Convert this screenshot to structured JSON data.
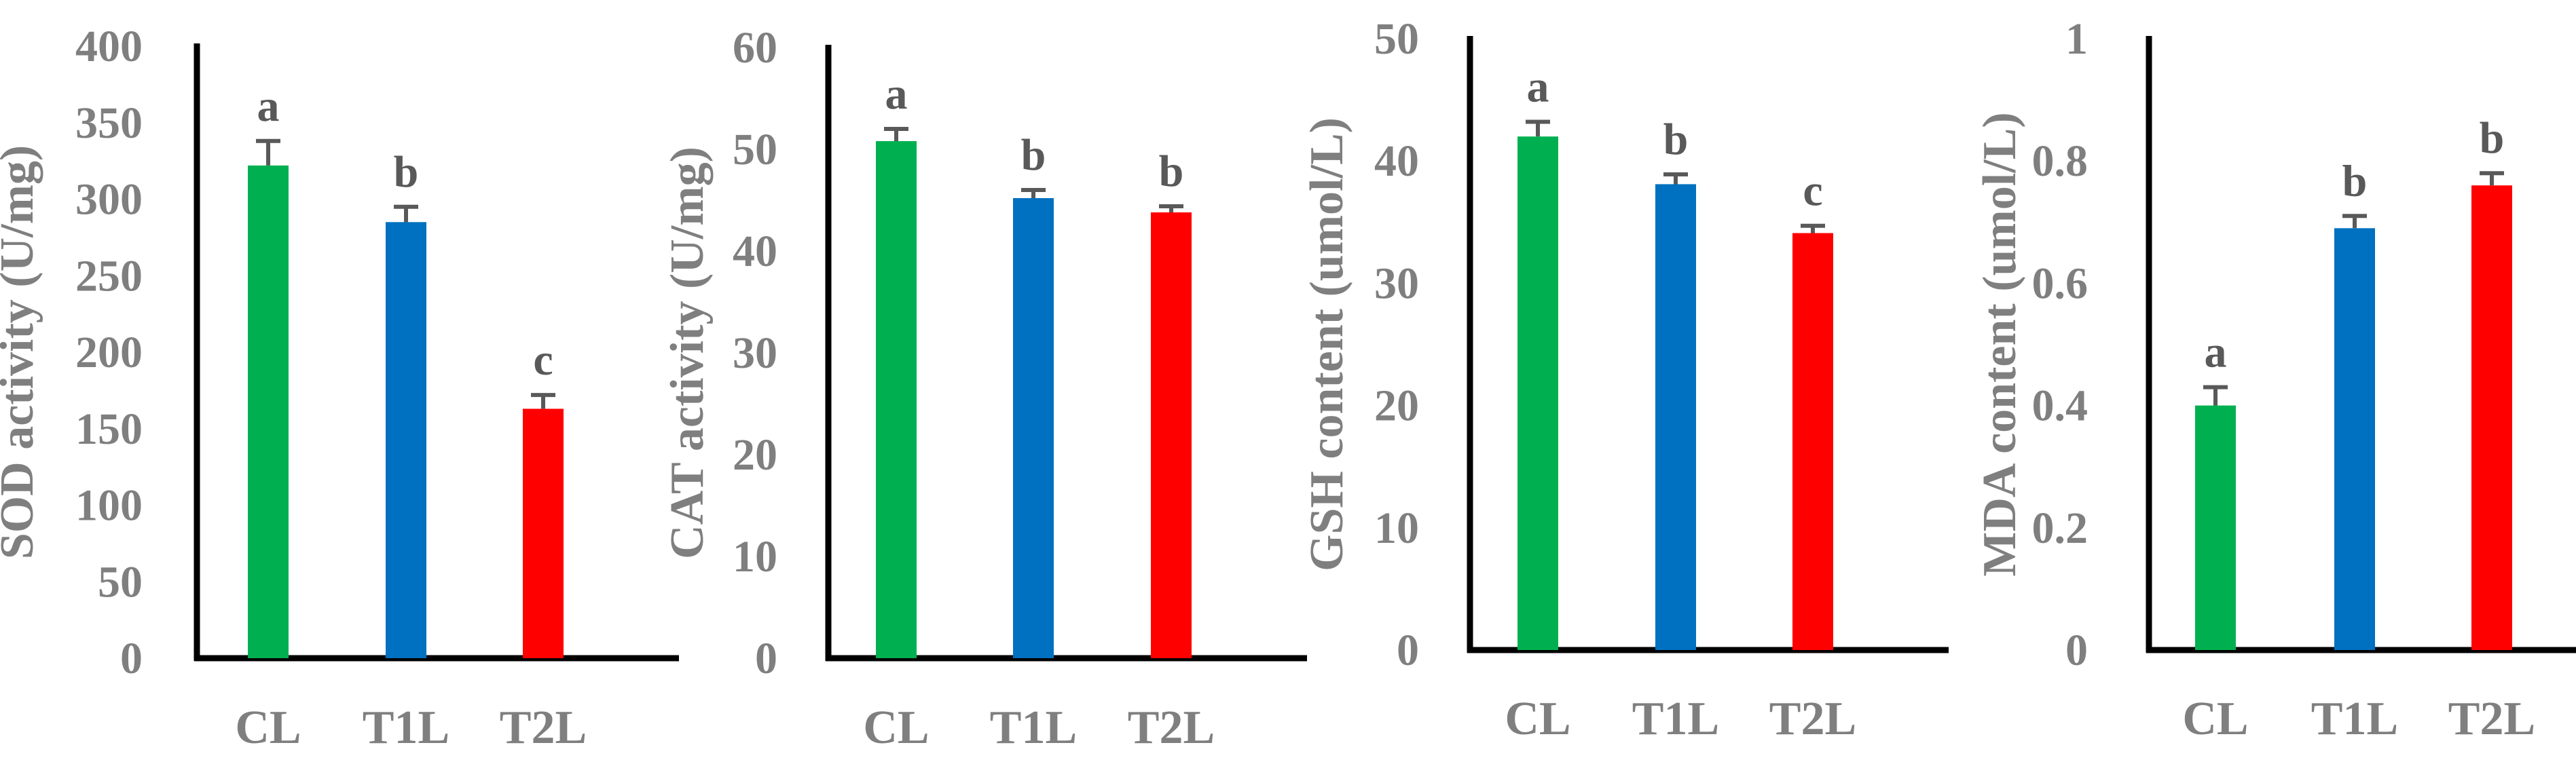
{
  "chart_data": [
    {
      "type": "bar",
      "categories": [
        "CL",
        "T1L",
        "T2L"
      ],
      "values": [
        322,
        285,
        163
      ],
      "errors": [
        16,
        10,
        9
      ],
      "significance": [
        "a",
        "b",
        "c"
      ],
      "colors": [
        "#00b050",
        "#0070c0",
        "#ff0000"
      ],
      "ylabel": "SOD activity (U/mg)",
      "ylim": [
        0,
        400
      ],
      "yticks": [
        "0",
        "50",
        "100",
        "150",
        "200",
        "250",
        "300",
        "350",
        "400"
      ]
    },
    {
      "type": "bar",
      "categories": [
        "CL",
        "T1L",
        "T2L"
      ],
      "values": [
        50.8,
        45.2,
        43.8
      ],
      "errors": [
        1.2,
        0.8,
        0.6
      ],
      "significance": [
        "a",
        "b",
        "b"
      ],
      "colors": [
        "#00b050",
        "#0070c0",
        "#ff0000"
      ],
      "ylabel": "CAT activity (U/mg)",
      "ylim": [
        0,
        60
      ],
      "yticks": [
        "0",
        "10",
        "20",
        "30",
        "40",
        "50",
        "60"
      ]
    },
    {
      "type": "bar",
      "categories": [
        "CL",
        "T1L",
        "T2L"
      ],
      "values": [
        42,
        38.1,
        34.1
      ],
      "errors": [
        1.2,
        0.8,
        0.6
      ],
      "significance": [
        "a",
        "b",
        "c"
      ],
      "colors": [
        "#00b050",
        "#0070c0",
        "#ff0000"
      ],
      "ylabel": "GSH content (umol/L)",
      "ylim": [
        0,
        50
      ],
      "yticks": [
        "0",
        "10",
        "20",
        "30",
        "40",
        "50"
      ]
    },
    {
      "type": "bar",
      "categories": [
        "CL",
        "T1L",
        "T2L"
      ],
      "values": [
        0.4,
        0.69,
        0.76
      ],
      "errors": [
        0.03,
        0.02,
        0.02
      ],
      "significance": [
        "a",
        "b",
        "b"
      ],
      "colors": [
        "#00b050",
        "#0070c0",
        "#ff0000"
      ],
      "ylabel": "MDA  content (umol/L)",
      "ylim": [
        0,
        1
      ],
      "yticks": [
        "0",
        "0.2",
        "0.4",
        "0.6",
        "0.8",
        "1"
      ]
    }
  ]
}
